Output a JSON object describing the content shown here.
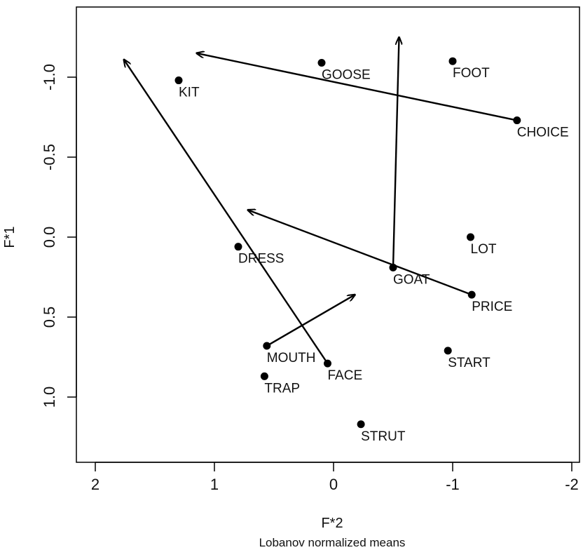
{
  "chart_data": {
    "type": "scatter",
    "title": "",
    "subtitle": "Lobanov normalized means",
    "xlabel": "F*2",
    "ylabel": "F*1",
    "xlim": [
      2.1,
      -2.1
    ],
    "ylim": [
      1.4,
      -1.4
    ],
    "x_reversed": true,
    "y_reversed": true,
    "xticks": [
      2,
      1,
      0,
      -1,
      -2
    ],
    "xtick_labels": [
      "2",
      "1",
      "0",
      "-1",
      "-2"
    ],
    "yticks": [
      -1.0,
      -0.5,
      0.0,
      0.5,
      1.0
    ],
    "ytick_labels": [
      "-1.0",
      "-0.5",
      "0.0",
      "0.5",
      "1.0"
    ],
    "grid": false,
    "legend": "none",
    "point_color": "#000000",
    "points": [
      {
        "label": "KIT",
        "x": 1.3,
        "y": -0.98
      },
      {
        "label": "GOOSE",
        "x": 0.1,
        "y": -1.09
      },
      {
        "label": "FOOT",
        "x": -1.0,
        "y": -1.1
      },
      {
        "label": "CHOICE",
        "x": -1.54,
        "y": -0.73
      },
      {
        "label": "LOT",
        "x": -1.15,
        "y": 0.0
      },
      {
        "label": "DRESS",
        "x": 0.8,
        "y": 0.06
      },
      {
        "label": "GOAT",
        "x": -0.5,
        "y": 0.19
      },
      {
        "label": "PRICE",
        "x": -1.16,
        "y": 0.36
      },
      {
        "label": "MOUTH",
        "x": 0.56,
        "y": 0.68
      },
      {
        "label": "START",
        "x": -0.96,
        "y": 0.71
      },
      {
        "label": "FACE",
        "x": 0.05,
        "y": 0.79
      },
      {
        "label": "TRAP",
        "x": 0.58,
        "y": 0.87
      },
      {
        "label": "STRUT",
        "x": -0.23,
        "y": 1.17
      }
    ],
    "arrows": [
      {
        "from": "CHOICE",
        "x1": -1.54,
        "y1": -0.73,
        "x2": 1.15,
        "y2": -1.15
      },
      {
        "from": "GOAT",
        "x1": -0.5,
        "y1": 0.19,
        "x2": -0.55,
        "y2": -1.25
      },
      {
        "from": "FACE",
        "x1": 0.05,
        "y1": 0.79,
        "x2": 1.76,
        "y2": -1.11
      },
      {
        "from": "PRICE",
        "x1": -1.16,
        "y1": 0.36,
        "x2": 0.72,
        "y2": -0.17
      },
      {
        "from": "MOUTH",
        "x1": 0.56,
        "y1": 0.68,
        "x2": -0.18,
        "y2": 0.36
      }
    ]
  }
}
